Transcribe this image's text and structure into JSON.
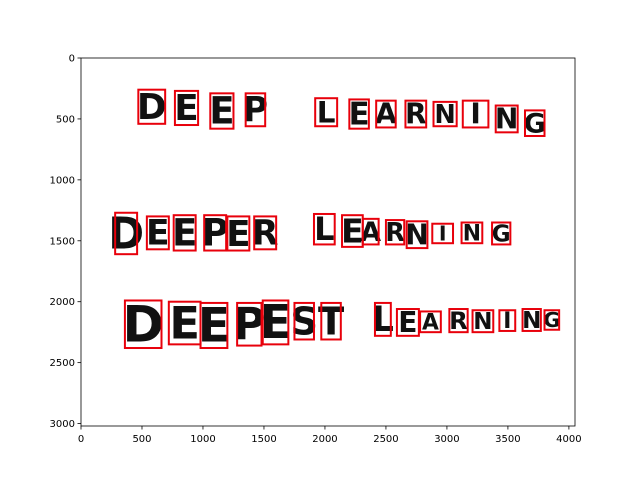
{
  "chart_data": {
    "type": "scatter",
    "title": "",
    "xlabel": "",
    "ylabel": "",
    "xlim": [
      0,
      4050
    ],
    "ylim": [
      3020,
      0
    ],
    "y_inverted": true,
    "grid": false,
    "legend": "none",
    "xticks": [
      0,
      500,
      1000,
      1500,
      2000,
      2500,
      3000,
      3500,
      4000
    ],
    "yticks": [
      0,
      500,
      1000,
      1500,
      2000,
      2500,
      3000
    ],
    "box_color": "#e8000b",
    "ink_color": "#111111",
    "lines": [
      {
        "text": "DEEP LEARNING",
        "boxes": [
          {
            "char": "D",
            "x0": 470,
            "x1": 690,
            "y0": 260,
            "y1": 540
          },
          {
            "char": "E",
            "x0": 770,
            "x1": 960,
            "y0": 270,
            "y1": 550
          },
          {
            "char": "E",
            "x0": 1060,
            "x1": 1250,
            "y0": 290,
            "y1": 580
          },
          {
            "char": "P",
            "x0": 1350,
            "x1": 1510,
            "y0": 290,
            "y1": 560
          },
          {
            "char": "L",
            "x0": 1920,
            "x1": 2100,
            "y0": 330,
            "y1": 560
          },
          {
            "char": "E",
            "x0": 2200,
            "x1": 2360,
            "y0": 340,
            "y1": 580
          },
          {
            "char": "A",
            "x0": 2420,
            "x1": 2580,
            "y0": 350,
            "y1": 570
          },
          {
            "char": "R",
            "x0": 2660,
            "x1": 2830,
            "y0": 350,
            "y1": 570
          },
          {
            "char": "N",
            "x0": 2890,
            "x1": 3080,
            "y0": 360,
            "y1": 560
          },
          {
            "char": "I",
            "x0": 3130,
            "x1": 3340,
            "y0": 350,
            "y1": 570
          },
          {
            "char": "N",
            "x0": 3400,
            "x1": 3580,
            "y0": 390,
            "y1": 610
          },
          {
            "char": "G",
            "x0": 3640,
            "x1": 3800,
            "y0": 430,
            "y1": 640
          }
        ]
      },
      {
        "text": "DEEPER LEARNING",
        "boxes": [
          {
            "char": "D",
            "x0": 280,
            "x1": 460,
            "y0": 1270,
            "y1": 1610
          },
          {
            "char": "E",
            "x0": 540,
            "x1": 720,
            "y0": 1300,
            "y1": 1570
          },
          {
            "char": "E",
            "x0": 760,
            "x1": 940,
            "y0": 1290,
            "y1": 1580
          },
          {
            "char": "P",
            "x0": 1010,
            "x1": 1190,
            "y0": 1290,
            "y1": 1580
          },
          {
            "char": "E",
            "x0": 1200,
            "x1": 1380,
            "y0": 1300,
            "y1": 1580
          },
          {
            "char": "R",
            "x0": 1420,
            "x1": 1600,
            "y0": 1300,
            "y1": 1570
          },
          {
            "char": "L",
            "x0": 1910,
            "x1": 2080,
            "y0": 1280,
            "y1": 1530
          },
          {
            "char": "E",
            "x0": 2140,
            "x1": 2310,
            "y0": 1290,
            "y1": 1550
          },
          {
            "char": "A",
            "x0": 2310,
            "x1": 2440,
            "y0": 1320,
            "y1": 1530
          },
          {
            "char": "R",
            "x0": 2500,
            "x1": 2650,
            "y0": 1330,
            "y1": 1530
          },
          {
            "char": "N",
            "x0": 2670,
            "x1": 2840,
            "y0": 1340,
            "y1": 1560
          },
          {
            "char": "I",
            "x0": 2880,
            "x1": 3050,
            "y0": 1360,
            "y1": 1520
          },
          {
            "char": "N",
            "x0": 3120,
            "x1": 3290,
            "y0": 1350,
            "y1": 1520
          },
          {
            "char": "G",
            "x0": 3370,
            "x1": 3520,
            "y0": 1350,
            "y1": 1530
          }
        ]
      },
      {
        "text": "DEEPEST LEARNING",
        "boxes": [
          {
            "char": "D",
            "x0": 360,
            "x1": 660,
            "y0": 1990,
            "y1": 2380
          },
          {
            "char": "E",
            "x0": 720,
            "x1": 980,
            "y0": 2000,
            "y1": 2350
          },
          {
            "char": "E",
            "x0": 980,
            "x1": 1200,
            "y0": 2010,
            "y1": 2380
          },
          {
            "char": "P",
            "x0": 1280,
            "x1": 1480,
            "y0": 2010,
            "y1": 2360
          },
          {
            "char": "E",
            "x0": 1490,
            "x1": 1700,
            "y0": 1990,
            "y1": 2350
          },
          {
            "char": "S",
            "x0": 1750,
            "x1": 1910,
            "y0": 2010,
            "y1": 2310
          },
          {
            "char": "T",
            "x0": 1970,
            "x1": 2130,
            "y0": 2010,
            "y1": 2310
          },
          {
            "char": "L",
            "x0": 2410,
            "x1": 2540,
            "y0": 2010,
            "y1": 2280
          },
          {
            "char": "E",
            "x0": 2590,
            "x1": 2770,
            "y0": 2060,
            "y1": 2280
          },
          {
            "char": "A",
            "x0": 2780,
            "x1": 2950,
            "y0": 2080,
            "y1": 2250
          },
          {
            "char": "R",
            "x0": 3020,
            "x1": 3170,
            "y0": 2060,
            "y1": 2250
          },
          {
            "char": "N",
            "x0": 3210,
            "x1": 3380,
            "y0": 2070,
            "y1": 2250
          },
          {
            "char": "I",
            "x0": 3430,
            "x1": 3560,
            "y0": 2070,
            "y1": 2240
          },
          {
            "char": "N",
            "x0": 3620,
            "x1": 3770,
            "y0": 2060,
            "y1": 2240
          },
          {
            "char": "G",
            "x0": 3800,
            "x1": 3920,
            "y0": 2070,
            "y1": 2230
          }
        ]
      }
    ]
  }
}
